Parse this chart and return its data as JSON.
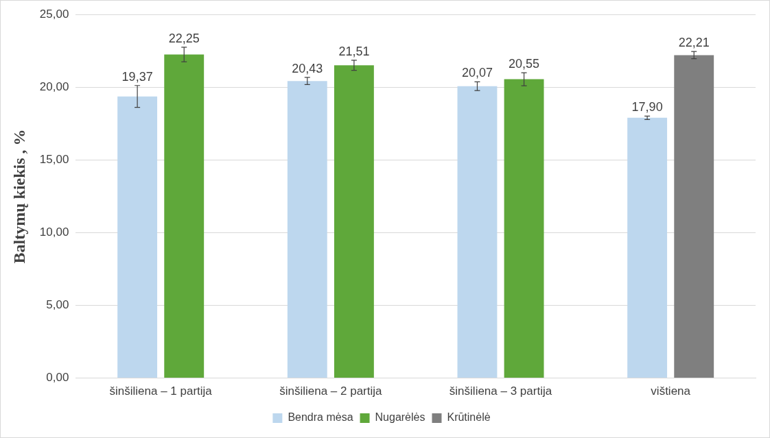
{
  "chart_data": {
    "type": "bar",
    "ylabel": "Baltymų kiekis , %",
    "categories": [
      "šinšiliena – 1 partija",
      "šinšiliena – 2 partija",
      "šinšiliena – 3 partija",
      "vištiena"
    ],
    "series": [
      {
        "name": "Bendra mėsa",
        "color": "#bdd7ee",
        "values": [
          19.37,
          20.43,
          20.07,
          17.9
        ],
        "errors": [
          0.75,
          0.25,
          0.3,
          0.12
        ],
        "value_labels": [
          "19,37",
          "20,43",
          "20,07",
          "17,90"
        ]
      },
      {
        "name": "Nugarėlės",
        "color": "#5fa83a",
        "values": [
          22.25,
          21.51,
          20.55,
          null
        ],
        "errors": [
          0.5,
          0.35,
          0.45,
          null
        ],
        "value_labels": [
          "22,25",
          "21,51",
          "20,55",
          null
        ]
      },
      {
        "name": "Krūtinėlė",
        "color": "#7f7f7f",
        "values": [
          null,
          null,
          null,
          22.21
        ],
        "errors": [
          null,
          null,
          null,
          0.25
        ],
        "value_labels": [
          null,
          null,
          null,
          "22,21"
        ]
      }
    ],
    "ylim": [
      0,
      25
    ],
    "yticks": [
      {
        "value": 0,
        "label": "0,00"
      },
      {
        "value": 5,
        "label": "5,00"
      },
      {
        "value": 10,
        "label": "10,00"
      },
      {
        "value": 15,
        "label": "15,00"
      },
      {
        "value": 20,
        "label": "20,00"
      },
      {
        "value": 25,
        "label": "25,00"
      }
    ],
    "grid": "y",
    "legend": "bottom"
  }
}
